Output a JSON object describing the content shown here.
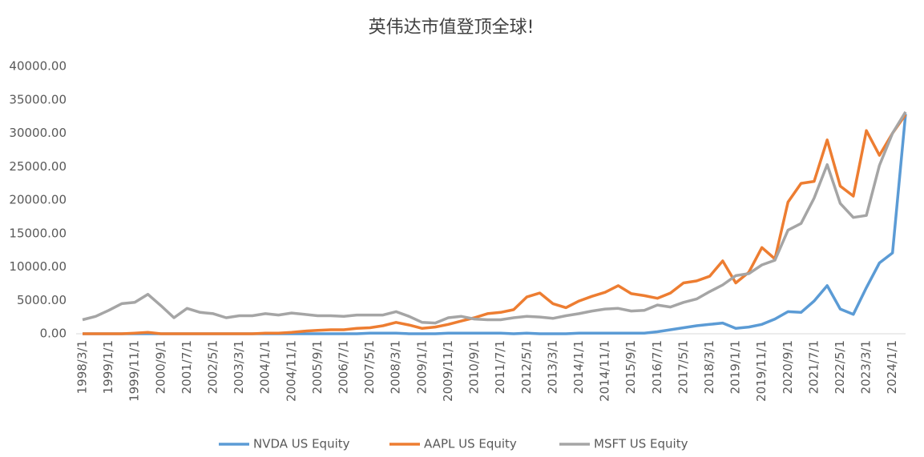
{
  "chart_data": {
    "type": "line",
    "title": "英伟达市值登顶全球!",
    "categories": [
      "1998/3/1",
      null,
      "1999/1/1",
      null,
      "1999/11/1",
      null,
      "2000/9/1",
      null,
      "2001/7/1",
      null,
      "2002/5/1",
      null,
      "2003/3/1",
      null,
      "2004/1/1",
      null,
      "2004/11/1",
      null,
      "2005/9/1",
      null,
      "2006/7/1",
      null,
      "2007/5/1",
      null,
      "2008/3/1",
      null,
      "2009/1/1",
      null,
      "2009/11/1",
      null,
      "2010/9/1",
      null,
      "2011/7/1",
      null,
      "2012/5/1",
      null,
      "2013/3/1",
      null,
      "2014/1/1",
      null,
      "2014/11/1",
      null,
      "2015/9/1",
      null,
      "2016/7/1",
      null,
      "2017/5/1",
      null,
      "2018/3/1",
      null,
      "2019/1/1",
      null,
      "2019/11/1",
      null,
      "2020/9/1",
      null,
      "2021/7/1",
      null,
      "2022/5/1",
      null,
      "2023/3/1",
      null,
      "2024/1/1",
      null
    ],
    "series": [
      {
        "name": "NVDA US Equity",
        "color": "#5b9bd5",
        "values": [
          0,
          0,
          0,
          0,
          0,
          0,
          0,
          0,
          0,
          0,
          0,
          0,
          0,
          0,
          0,
          0,
          0,
          0,
          0,
          0,
          0,
          0,
          100,
          100,
          100,
          0,
          0,
          0,
          100,
          100,
          100,
          100,
          100,
          0,
          100,
          0,
          0,
          0,
          100,
          100,
          100,
          100,
          100,
          100,
          300,
          600,
          900,
          1200,
          1400,
          1600,
          800,
          1000,
          1400,
          2200,
          3300,
          3200,
          4900,
          7200,
          3700,
          2900,
          6900,
          10600,
          12100,
          32900
        ]
      },
      {
        "name": "AAPL US Equity",
        "color": "#ed7d31",
        "values": [
          0,
          0,
          0,
          0,
          100,
          200,
          0,
          0,
          0,
          0,
          0,
          0,
          0,
          0,
          100,
          100,
          200,
          400,
          500,
          600,
          600,
          800,
          900,
          1200,
          1700,
          1300,
          800,
          1000,
          1400,
          1900,
          2400,
          3000,
          3200,
          3600,
          5500,
          6100,
          4500,
          3900,
          4900,
          5600,
          6200,
          7200,
          6000,
          5700,
          5300,
          6100,
          7600,
          7900,
          8600,
          10900,
          7600,
          9200,
          12900,
          11200,
          19700,
          22500,
          22800,
          29000,
          22100,
          20600,
          30400,
          26700,
          30000,
          32800
        ]
      },
      {
        "name": "MSFT US Equity",
        "color": "#a5a5a5",
        "values": [
          2100,
          2600,
          3500,
          4500,
          4700,
          5900,
          4200,
          2400,
          3800,
          3200,
          3000,
          2400,
          2700,
          2700,
          3000,
          2800,
          3100,
          2900,
          2700,
          2700,
          2600,
          2800,
          2800,
          2800,
          3300,
          2600,
          1700,
          1600,
          2400,
          2600,
          2200,
          2100,
          2100,
          2400,
          2600,
          2500,
          2300,
          2700,
          3000,
          3400,
          3700,
          3800,
          3400,
          3500,
          4300,
          4000,
          4700,
          5200,
          6300,
          7300,
          8700,
          9000,
          10300,
          11000,
          15500,
          16500,
          20300,
          25300,
          19500,
          17400,
          17700,
          25200,
          30000,
          33200
        ]
      }
    ],
    "ylim": [
      0,
      40000
    ],
    "yticks": [
      {
        "value": 0,
        "label": "0.00"
      },
      {
        "value": 5000,
        "label": "5000.00"
      },
      {
        "value": 10000,
        "label": "10000.00"
      },
      {
        "value": 15000,
        "label": "15000.00"
      },
      {
        "value": 20000,
        "label": "20000.00"
      },
      {
        "value": 25000,
        "label": "25000.00"
      },
      {
        "value": 30000,
        "label": "30000.00"
      },
      {
        "value": 35000,
        "label": "35000.00"
      },
      {
        "value": 40000,
        "label": "40000.00"
      }
    ],
    "grid": false,
    "legend": "bottom"
  }
}
